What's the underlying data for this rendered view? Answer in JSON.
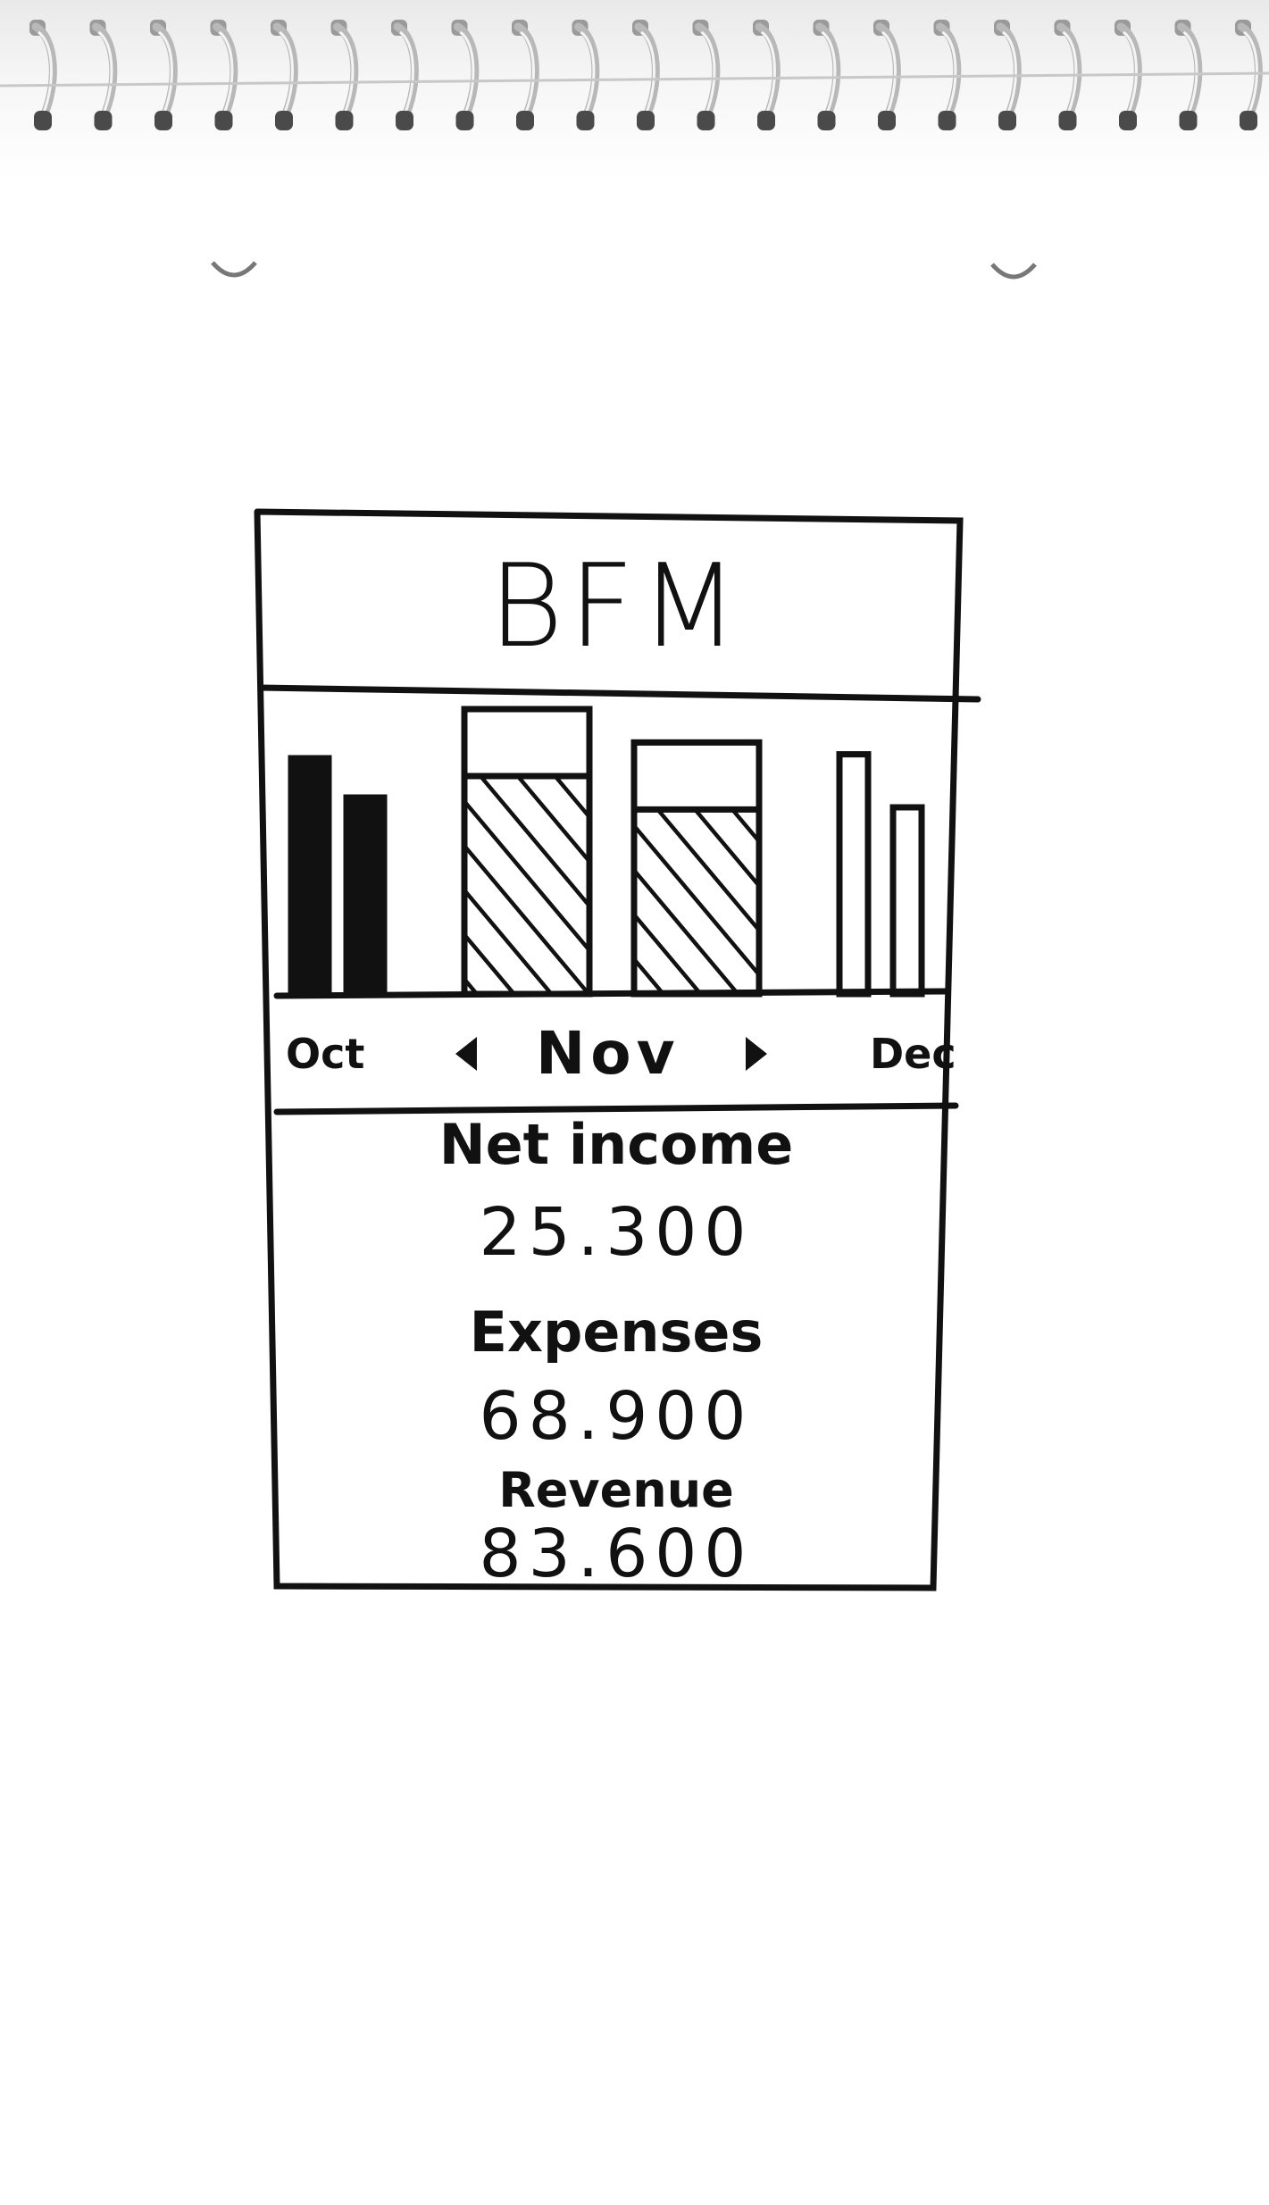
{
  "app": {
    "title": "BFM"
  },
  "month_nav": {
    "previous": "Oct",
    "current": "Nov",
    "next": "Dec"
  },
  "chart_data": {
    "type": "bar",
    "title": "",
    "categories": [
      "Oct",
      "Nov",
      "Dec"
    ],
    "series": [
      {
        "values": [
          120,
          145,
          122
        ]
      },
      {
        "values": [
          100,
          128,
          95
        ]
      }
    ],
    "fill": {
      "Oct": "solid",
      "Nov": "hatched",
      "Dec": "outline"
    }
  },
  "summary": {
    "net_income_label": "Net income",
    "net_income_value": "25.300",
    "expenses_label": "Expenses",
    "expenses_value": "68.900",
    "revenue_label": "Revenue",
    "revenue_value": "83.600"
  },
  "colors": {
    "ink": "#111111",
    "paper": "#ffffff"
  }
}
